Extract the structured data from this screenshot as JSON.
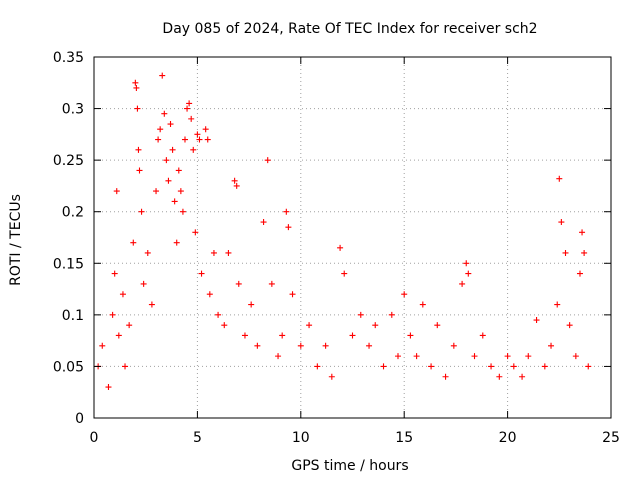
{
  "chart_data": {
    "type": "scatter",
    "title": "Day 085 of 2024, Rate Of TEC Index for receiver sch2",
    "xlabel": "GPS time / hours",
    "ylabel": "ROTI / TECUs",
    "xlim": [
      0,
      25
    ],
    "ylim": [
      0,
      0.35
    ],
    "x_ticks": [
      "0",
      "5",
      "10",
      "15",
      "20",
      "25"
    ],
    "y_ticks": [
      "0",
      "0.05",
      "0.1",
      "0.15",
      "0.2",
      "0.25",
      "0.3",
      "0.35"
    ],
    "grid": true,
    "marker": "+",
    "series": [
      {
        "name": "ROTI",
        "color": "#ff0000",
        "points": [
          [
            0.2,
            0.05
          ],
          [
            0.4,
            0.07
          ],
          [
            0.7,
            0.03
          ],
          [
            0.9,
            0.1
          ],
          [
            1.0,
            0.14
          ],
          [
            1.1,
            0.22
          ],
          [
            1.2,
            0.08
          ],
          [
            1.4,
            0.12
          ],
          [
            1.5,
            0.05
          ],
          [
            1.7,
            0.09
          ],
          [
            1.9,
            0.17
          ],
          [
            2.0,
            0.325
          ],
          [
            2.05,
            0.32
          ],
          [
            2.1,
            0.3
          ],
          [
            2.15,
            0.26
          ],
          [
            2.2,
            0.24
          ],
          [
            2.3,
            0.2
          ],
          [
            2.4,
            0.13
          ],
          [
            2.6,
            0.16
          ],
          [
            2.8,
            0.11
          ],
          [
            3.0,
            0.22
          ],
          [
            3.1,
            0.27
          ],
          [
            3.2,
            0.28
          ],
          [
            3.3,
            0.332
          ],
          [
            3.4,
            0.295
          ],
          [
            3.5,
            0.25
          ],
          [
            3.6,
            0.23
          ],
          [
            3.7,
            0.285
          ],
          [
            3.8,
            0.26
          ],
          [
            3.9,
            0.21
          ],
          [
            4.0,
            0.17
          ],
          [
            4.1,
            0.24
          ],
          [
            4.2,
            0.22
          ],
          [
            4.3,
            0.2
          ],
          [
            4.4,
            0.27
          ],
          [
            4.5,
            0.3
          ],
          [
            4.6,
            0.305
          ],
          [
            4.7,
            0.29
          ],
          [
            4.8,
            0.26
          ],
          [
            4.9,
            0.18
          ],
          [
            5.0,
            0.275
          ],
          [
            5.1,
            0.27
          ],
          [
            5.2,
            0.14
          ],
          [
            5.4,
            0.28
          ],
          [
            5.5,
            0.27
          ],
          [
            5.6,
            0.12
          ],
          [
            5.8,
            0.16
          ],
          [
            6.0,
            0.1
          ],
          [
            6.3,
            0.09
          ],
          [
            6.5,
            0.16
          ],
          [
            6.8,
            0.23
          ],
          [
            6.9,
            0.225
          ],
          [
            7.0,
            0.13
          ],
          [
            7.3,
            0.08
          ],
          [
            7.6,
            0.11
          ],
          [
            7.9,
            0.07
          ],
          [
            8.2,
            0.19
          ],
          [
            8.4,
            0.25
          ],
          [
            8.6,
            0.13
          ],
          [
            8.9,
            0.06
          ],
          [
            9.1,
            0.08
          ],
          [
            9.3,
            0.2
          ],
          [
            9.4,
            0.185
          ],
          [
            9.6,
            0.12
          ],
          [
            10.0,
            0.07
          ],
          [
            10.4,
            0.09
          ],
          [
            10.8,
            0.05
          ],
          [
            11.2,
            0.07
          ],
          [
            11.5,
            0.04
          ],
          [
            11.9,
            0.165
          ],
          [
            12.1,
            0.14
          ],
          [
            12.5,
            0.08
          ],
          [
            12.9,
            0.1
          ],
          [
            13.3,
            0.07
          ],
          [
            13.6,
            0.09
          ],
          [
            14.0,
            0.05
          ],
          [
            14.4,
            0.1
          ],
          [
            14.7,
            0.06
          ],
          [
            15.0,
            0.12
          ],
          [
            15.3,
            0.08
          ],
          [
            15.6,
            0.06
          ],
          [
            15.9,
            0.11
          ],
          [
            16.3,
            0.05
          ],
          [
            16.6,
            0.09
          ],
          [
            17.0,
            0.04
          ],
          [
            17.4,
            0.07
          ],
          [
            17.8,
            0.13
          ],
          [
            18.0,
            0.15
          ],
          [
            18.1,
            0.14
          ],
          [
            18.4,
            0.06
          ],
          [
            18.8,
            0.08
          ],
          [
            19.2,
            0.05
          ],
          [
            19.6,
            0.04
          ],
          [
            20.0,
            0.06
          ],
          [
            20.3,
            0.05
          ],
          [
            20.7,
            0.04
          ],
          [
            21.0,
            0.06
          ],
          [
            21.4,
            0.095
          ],
          [
            21.8,
            0.05
          ],
          [
            22.1,
            0.07
          ],
          [
            22.4,
            0.11
          ],
          [
            22.5,
            0.232
          ],
          [
            22.6,
            0.19
          ],
          [
            22.8,
            0.16
          ],
          [
            23.0,
            0.09
          ],
          [
            23.3,
            0.06
          ],
          [
            23.5,
            0.14
          ],
          [
            23.6,
            0.18
          ],
          [
            23.7,
            0.16
          ],
          [
            23.9,
            0.05
          ]
        ]
      }
    ]
  }
}
